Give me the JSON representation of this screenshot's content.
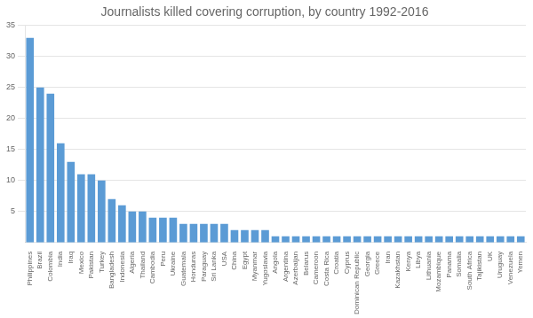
{
  "chart_data": {
    "type": "bar",
    "title": "Journalists killed covering corruption, by country 1992-2016",
    "categories": [
      "Philippines",
      "Brazil",
      "Colombia",
      "India",
      "Iraq",
      "Mexico",
      "Pakistan",
      "Turkey",
      "Bangladesh",
      "Indonesia",
      "Algeria",
      "Thailand",
      "Cambodia",
      "Peru",
      "Ukraine",
      "Guatemala",
      "Honduras",
      "Paraguay",
      "Sri Lanka",
      "USA",
      "China",
      "Egypt",
      "Myanmar",
      "Yugoslavia",
      "Angola",
      "Argentina",
      "Azerbaijan",
      "Belarus",
      "Cameroon",
      "Costa Rica",
      "Croatia",
      "Cyprus",
      "Dominican Republic",
      "Georgia",
      "Greece",
      "Iran",
      "Kazakhstan",
      "Kenya",
      "Libya",
      "Lithuania",
      "Mozambique",
      "Panama",
      "Somalia",
      "South Africa",
      "Tajikistan",
      "UK",
      "Uruguay",
      "Venezuela",
      "Yemen"
    ],
    "values": [
      33,
      25,
      24,
      16,
      13,
      11,
      11,
      10,
      7,
      6,
      5,
      5,
      4,
      4,
      4,
      3,
      3,
      3,
      3,
      3,
      2,
      2,
      2,
      2,
      1,
      1,
      1,
      1,
      1,
      1,
      1,
      1,
      1,
      1,
      1,
      1,
      1,
      1,
      1,
      1,
      1,
      1,
      1,
      1,
      1,
      1,
      1,
      1,
      1
    ],
    "color": "#5b9bd5",
    "ylim": [
      0,
      35
    ],
    "yticks": [
      5,
      10,
      15,
      20,
      25,
      30,
      35
    ],
    "grid": true
  }
}
